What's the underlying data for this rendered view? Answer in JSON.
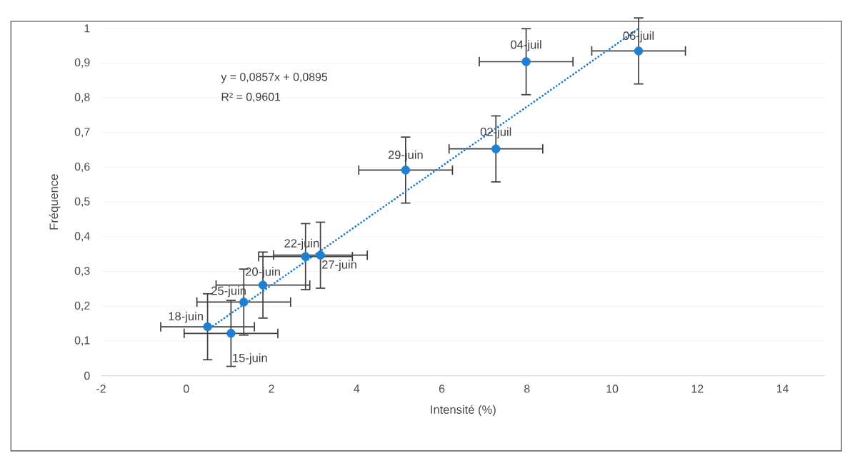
{
  "chart_data": {
    "type": "scatter",
    "xlabel": "Intensité (%)",
    "ylabel": "Fréquence",
    "xlim": [
      -2,
      15
    ],
    "ylim": [
      0,
      1
    ],
    "xticks": [
      -2,
      0,
      2,
      4,
      6,
      8,
      10,
      12,
      14
    ],
    "yticks": [
      0,
      {
        "value": 0.1,
        "label": "0,1"
      },
      {
        "value": 0.2,
        "label": "0,2"
      },
      {
        "value": 0.3,
        "label": "0,3"
      },
      {
        "value": 0.4,
        "label": "0,4"
      },
      {
        "value": 0.5,
        "label": "0,5"
      },
      {
        "value": 0.6,
        "label": "0,6"
      },
      {
        "value": 0.7,
        "label": "0,7"
      },
      {
        "value": 0.8,
        "label": "0,8"
      },
      {
        "value": 0.9,
        "label": "0,9"
      },
      1
    ],
    "grid": "y",
    "series": [
      {
        "color": "#1f7fd0",
        "marker": "circle",
        "x": [
          0.5,
          1.05,
          1.35,
          1.8,
          2.8,
          3.15,
          5.15,
          7.27,
          7.98,
          10.62
        ],
        "values": [
          0.141,
          0.122,
          0.212,
          0.261,
          0.343,
          0.347,
          0.592,
          0.653,
          0.904,
          0.935
        ],
        "errors": [
          0.095,
          0.095,
          0.095,
          0.095,
          0.095,
          0.095,
          0.095,
          0.095,
          0.095,
          0.095
        ],
        "xerrors": [
          1.1,
          1.1,
          1.1,
          1.1,
          1.1,
          1.1,
          1.1,
          1.1,
          1.1,
          1.1
        ]
      },
      {
        "type": "line",
        "color": "#1f7fd0",
        "marker": "none",
        "line_style": "dotted",
        "x": [
          0.5,
          10.62
        ],
        "values": [
          0.132,
          0.999
        ]
      }
    ],
    "annotations": [
      "y = 0,0857x + 0,0895",
      "R² = 0,9601",
      {
        "text": "18-juin",
        "x": 0.5,
        "y": 0.141
      },
      {
        "text": "15-juin",
        "x": 1.05,
        "y": 0.122
      },
      {
        "text": "25-juin",
        "x": 1.35,
        "y": 0.212
      },
      {
        "text": "20-juin",
        "x": 1.8,
        "y": 0.261
      },
      {
        "text": "22-juin",
        "x": 2.8,
        "y": 0.343
      },
      {
        "text": "27-juin",
        "x": 3.15,
        "y": 0.347
      },
      {
        "text": "29-juin",
        "x": 5.15,
        "y": 0.592
      },
      {
        "text": "02-juil",
        "x": 7.27,
        "y": 0.653
      },
      {
        "text": "04-juil",
        "x": 7.98,
        "y": 0.904
      },
      {
        "text": "06-juil",
        "x": 10.62,
        "y": 0.935
      }
    ]
  }
}
